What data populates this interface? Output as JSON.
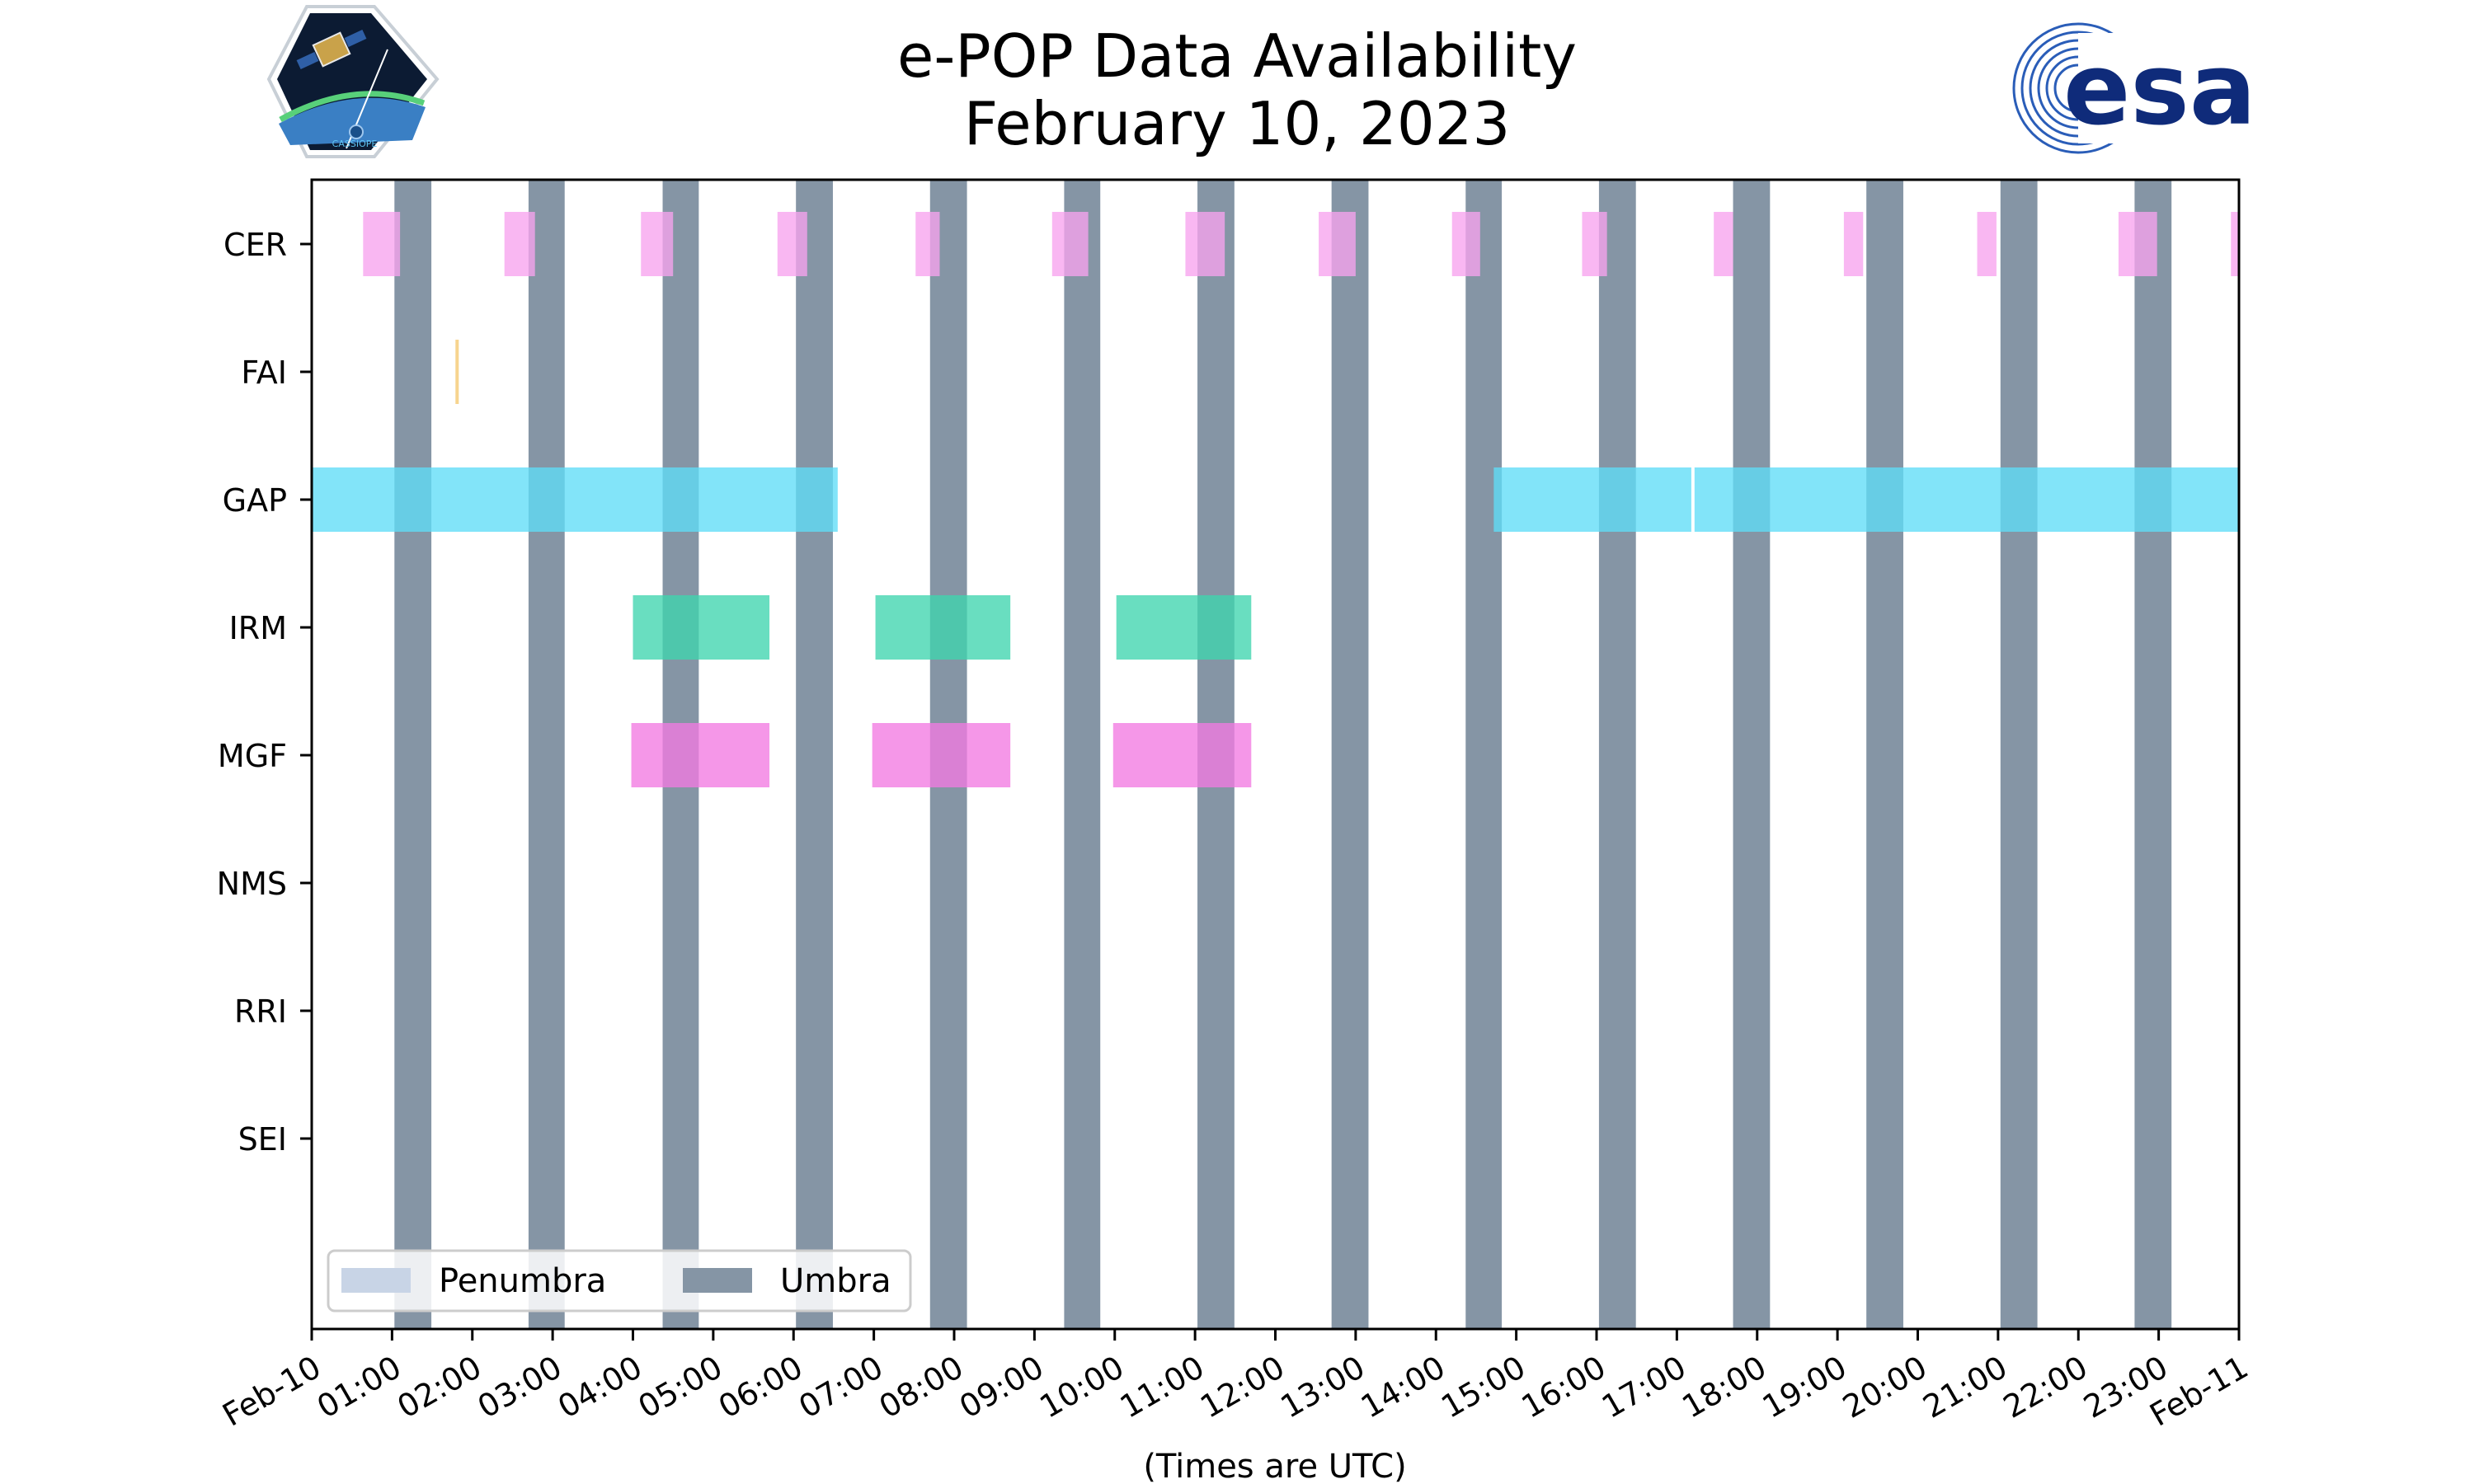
{
  "chart_data": {
    "type": "timeline",
    "title": "e-POP Data Availability",
    "subtitle": "February 10, 2023",
    "xlabel": "(Times are UTC)",
    "x_range_hours": [
      0,
      24
    ],
    "x_tick_labels": [
      "Feb-10",
      "01:00",
      "02:00",
      "03:00",
      "04:00",
      "05:00",
      "06:00",
      "07:00",
      "08:00",
      "09:00",
      "10:00",
      "11:00",
      "12:00",
      "13:00",
      "14:00",
      "15:00",
      "16:00",
      "17:00",
      "18:00",
      "19:00",
      "20:00",
      "21:00",
      "22:00",
      "23:00",
      "Feb-11"
    ],
    "instruments": [
      "CER",
      "FAI",
      "GAP",
      "IRM",
      "MGF",
      "NMS",
      "RRI",
      "SEI"
    ],
    "colors": {
      "CER": "#f7a3ee",
      "FAI": "#f5c86e",
      "GAP": "#5fdcf7",
      "IRM": "#3fd5ae",
      "MGF": "#f27ae2",
      "umbra": "#8595a5",
      "penumbra": "#c8d4e6",
      "axis": "#000000"
    },
    "intervals": {
      "CER": [
        [
          0.64,
          1.1
        ],
        [
          2.4,
          2.78
        ],
        [
          4.1,
          4.5
        ],
        [
          5.8,
          6.17
        ],
        [
          7.52,
          7.82
        ],
        [
          9.22,
          9.67
        ],
        [
          10.88,
          11.37
        ],
        [
          12.54,
          13.0
        ],
        [
          14.2,
          14.55
        ],
        [
          15.82,
          16.13
        ],
        [
          17.46,
          17.7
        ],
        [
          19.08,
          19.32
        ],
        [
          20.74,
          20.98
        ],
        [
          22.5,
          22.65
        ],
        [
          22.65,
          22.98
        ],
        [
          23.9,
          24.0
        ]
      ],
      "FAI": [
        [
          1.79,
          1.83
        ]
      ],
      "GAP": [
        [
          0.0,
          6.55
        ],
        [
          14.72,
          17.18
        ],
        [
          17.22,
          24.0
        ]
      ],
      "IRM": [
        [
          4.0,
          5.7
        ],
        [
          7.02,
          8.7
        ],
        [
          10.02,
          11.7
        ]
      ],
      "MGF": [
        [
          3.98,
          5.7
        ],
        [
          6.98,
          8.7
        ],
        [
          9.98,
          11.7
        ]
      ]
    },
    "umbra": [
      [
        1.03,
        1.49
      ],
      [
        2.7,
        3.15
      ],
      [
        4.37,
        4.82
      ],
      [
        6.03,
        6.49
      ],
      [
        7.7,
        8.16
      ],
      [
        9.37,
        9.82
      ],
      [
        11.03,
        11.49
      ],
      [
        12.7,
        13.16
      ],
      [
        14.37,
        14.82
      ],
      [
        16.03,
        16.49
      ],
      [
        17.7,
        18.16
      ],
      [
        19.36,
        19.82
      ],
      [
        21.03,
        21.49
      ],
      [
        22.7,
        23.16
      ]
    ],
    "penumbra": [],
    "legend": {
      "location": "lower-left",
      "entries": [
        {
          "label": "Penumbra",
          "color_key": "penumbra"
        },
        {
          "label": "Umbra",
          "color_key": "umbra"
        }
      ]
    }
  },
  "logos": {
    "esa": "esa",
    "cassiope": "CASSIOPE"
  }
}
